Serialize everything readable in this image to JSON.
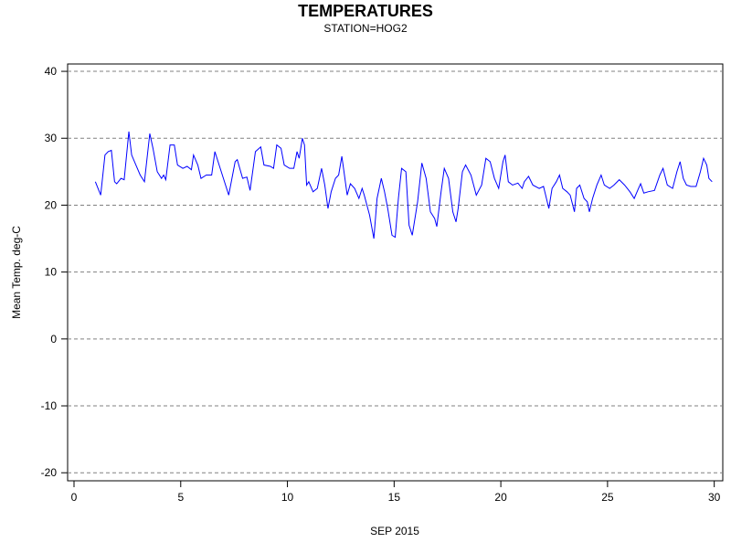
{
  "chart_data": {
    "type": "line",
    "title": "TEMPERATURES",
    "subtitle": "STATION=HOG2",
    "x_label": "SEP 2015",
    "y_label": "Mean Temp. deg-C",
    "xlim": [
      -0.3,
      30.4
    ],
    "xticks": [
      0,
      5,
      10,
      15,
      20,
      25,
      30
    ],
    "ylim": [
      -21.2,
      41.1
    ],
    "yticks": [
      -20,
      -10,
      0,
      10,
      20,
      30,
      40
    ],
    "grid": true,
    "x": [
      1.0,
      1.25,
      1.45,
      1.6,
      1.75,
      1.9,
      2.0,
      2.2,
      2.35,
      2.57,
      2.7,
      2.9,
      3.1,
      3.3,
      3.55,
      3.7,
      3.9,
      4.1,
      4.2,
      4.3,
      4.5,
      4.7,
      4.85,
      5.1,
      5.3,
      5.5,
      5.6,
      5.8,
      5.95,
      6.2,
      6.45,
      6.6,
      6.8,
      7.0,
      7.25,
      7.55,
      7.65,
      7.9,
      8.1,
      8.25,
      8.5,
      8.75,
      8.9,
      9.2,
      9.35,
      9.5,
      9.7,
      9.85,
      10.1,
      10.3,
      10.45,
      10.55,
      10.7,
      10.8,
      10.9,
      11.0,
      11.2,
      11.4,
      11.6,
      11.75,
      11.9,
      12.05,
      12.25,
      12.4,
      12.55,
      12.65,
      12.8,
      12.95,
      13.15,
      13.35,
      13.5,
      13.6,
      13.85,
      14.05,
      14.2,
      14.4,
      14.55,
      14.7,
      14.9,
      15.05,
      15.2,
      15.35,
      15.55,
      15.7,
      15.85,
      16.1,
      16.3,
      16.5,
      16.7,
      16.9,
      17.0,
      17.2,
      17.35,
      17.55,
      17.75,
      17.9,
      18.0,
      18.2,
      18.35,
      18.6,
      18.85,
      19.1,
      19.3,
      19.5,
      19.7,
      19.9,
      20.1,
      20.2,
      20.35,
      20.55,
      20.8,
      21.0,
      21.1,
      21.3,
      21.5,
      21.8,
      22.0,
      22.1,
      22.25,
      22.4,
      22.6,
      22.75,
      22.9,
      23.1,
      23.25,
      23.45,
      23.55,
      23.7,
      23.9,
      24.05,
      24.15,
      24.3,
      24.5,
      24.7,
      24.85,
      25.1,
      25.3,
      25.55,
      25.8,
      26.05,
      26.25,
      26.45,
      26.55,
      26.7,
      26.9,
      27.2,
      27.45,
      27.6,
      27.8,
      28.05,
      28.25,
      28.4,
      28.55,
      28.7,
      28.9,
      29.15,
      29.35,
      29.5,
      29.65,
      29.75,
      29.9
    ],
    "series": [
      {
        "name": "Mean Temp",
        "color": "#0000ff",
        "values": [
          23.5,
          21.5,
          27.5,
          28,
          28.2,
          23.5,
          23.2,
          24,
          23.8,
          31,
          27.5,
          26,
          24.5,
          23.5,
          30.7,
          28.5,
          25,
          24,
          24.5,
          23.8,
          29,
          29,
          26,
          25.5,
          25.8,
          25.3,
          27.5,
          26,
          24,
          24.5,
          24.5,
          28,
          26,
          24,
          21.5,
          26.5,
          26.8,
          24,
          24.2,
          22.2,
          28,
          28.7,
          26,
          25.8,
          25.5,
          29,
          28.5,
          26,
          25.5,
          25.5,
          28,
          27,
          30,
          29,
          23,
          23.5,
          22,
          22.5,
          25.5,
          23,
          19.5,
          22,
          24,
          24.5,
          27.3,
          25,
          21.5,
          23.2,
          22.5,
          21,
          22.5,
          21.5,
          18.5,
          15,
          21,
          24,
          22,
          19.5,
          15.5,
          15.2,
          21,
          25.5,
          25,
          17,
          15.5,
          20.5,
          26.3,
          24,
          19,
          18,
          16.8,
          22,
          25.5,
          24,
          19,
          17.5,
          19.5,
          25,
          26,
          24.5,
          21.5,
          23,
          27,
          26.5,
          24,
          22.5,
          26.5,
          27.5,
          23.5,
          23,
          23.3,
          22.5,
          23.5,
          24.3,
          23,
          22.5,
          22.8,
          21.5,
          19.5,
          22.5,
          23.5,
          24.5,
          22.5,
          22,
          21.5,
          19,
          22.5,
          23,
          21,
          20.5,
          19,
          21,
          23,
          24.5,
          23,
          22.5,
          23,
          23.8,
          23,
          22,
          21,
          22.5,
          23.2,
          21.8,
          22,
          22.2,
          24.5,
          25.5,
          23,
          22.5,
          25,
          26.5,
          24,
          23,
          22.8,
          22.8,
          25,
          27,
          26,
          24,
          23.5
        ]
      }
    ]
  }
}
